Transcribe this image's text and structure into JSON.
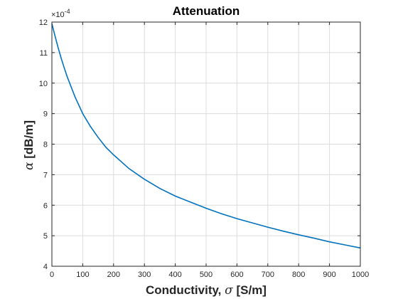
{
  "chart_data": {
    "type": "line",
    "title": "Attenuation",
    "xlabel_text": "Conductivity, ",
    "xlabel_symbol": "σ",
    "xlabel_unit": " [S/m]",
    "ylabel_symbol": "α",
    "ylabel_unit": " [dB/m]",
    "y_exponent": "×10^-4",
    "y_exponent_base": "×10",
    "y_exponent_power": "-4",
    "xlim": [
      0,
      1000
    ],
    "ylim": [
      4,
      12
    ],
    "x_ticks": [
      0,
      100,
      200,
      300,
      400,
      500,
      600,
      700,
      800,
      900,
      1000
    ],
    "y_ticks": [
      4,
      5,
      6,
      7,
      8,
      9,
      10,
      11,
      12
    ],
    "grid": true,
    "series": [
      {
        "color": "#0072BD",
        "x": [
          0,
          10,
          20,
          30,
          40,
          50,
          75,
          100,
          125,
          150,
          175,
          200,
          250,
          300,
          350,
          400,
          450,
          500,
          550,
          600,
          650,
          700,
          750,
          800,
          850,
          900,
          950,
          1000
        ],
        "y": [
          11.95,
          11.55,
          11.17,
          10.82,
          10.5,
          10.2,
          9.55,
          9.0,
          8.58,
          8.22,
          7.9,
          7.65,
          7.2,
          6.85,
          6.55,
          6.3,
          6.1,
          5.9,
          5.72,
          5.56,
          5.42,
          5.28,
          5.15,
          5.03,
          4.92,
          4.8,
          4.7,
          4.6
        ]
      }
    ]
  }
}
